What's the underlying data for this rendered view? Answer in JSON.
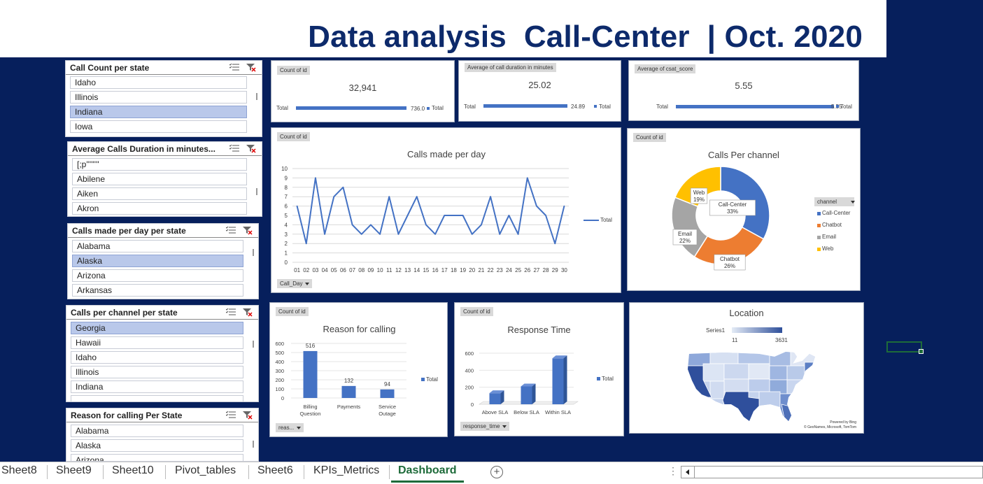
{
  "title": "Data analysis  Call-Center  | Oct. 2020",
  "slicers": [
    {
      "title": "Call Count per state",
      "items": [
        "Idaho",
        "Illinois",
        "Indiana",
        "Iowa"
      ],
      "selected": [
        2
      ]
    },
    {
      "title": "Average Calls Duration in minutes...",
      "items": [
        "[;p''''''''",
        "Abilene",
        "Aiken",
        "Akron"
      ],
      "selected": []
    },
    {
      "title": "Calls made per day per state",
      "items": [
        "Alabama",
        "Alaska",
        "Arizona",
        "Arkansas"
      ],
      "selected": [
        1
      ]
    },
    {
      "title": "Calls per channel per state",
      "items": [
        "Georgia",
        "Hawaii",
        "Idaho",
        "Illinois",
        "Indiana"
      ],
      "selected": [
        0
      ]
    },
    {
      "title": "Reason for calling Per State",
      "items": [
        "Alabama",
        "Alaska",
        "Arizona"
      ],
      "selected": []
    }
  ],
  "kpis": [
    {
      "tag": "Count of id",
      "value": "32,941",
      "row_label": "Total",
      "bar_label": "736.0",
      "legend": "Total"
    },
    {
      "tag": "Average of call duration in minutes",
      "value": "25.02",
      "row_label": "Total",
      "bar_label": "24.89",
      "legend": "Total"
    },
    {
      "tag": "Average of csat_score",
      "value": "5.55",
      "row_label": "Total",
      "bar_label": "5.55",
      "legend": "Total"
    }
  ],
  "calls_per_day": {
    "tag": "Count of id",
    "filter": "Call_Day",
    "legend": "Total",
    "chart_data": {
      "type": "line",
      "title": "Calls made per day",
      "x": [
        "01",
        "02",
        "03",
        "04",
        "05",
        "06",
        "07",
        "08",
        "09",
        "10",
        "11",
        "12",
        "13",
        "14",
        "15",
        "16",
        "17",
        "18",
        "19",
        "20",
        "21",
        "22",
        "23",
        "24",
        "25",
        "26",
        "27",
        "28",
        "29",
        "30"
      ],
      "series": [
        {
          "name": "Total",
          "values": [
            6,
            2,
            9,
            3,
            7,
            8,
            4,
            3,
            4,
            3,
            7,
            3,
            5,
            7,
            4,
            3,
            5,
            5,
            5,
            3,
            4,
            7,
            3,
            5,
            3,
            9,
            6,
            5,
            2,
            6
          ]
        }
      ],
      "ylim": [
        0,
        10
      ],
      "yticks": [
        "0",
        "1",
        "2",
        "3",
        "4",
        "5",
        "6",
        "7",
        "8",
        "9",
        "10"
      ],
      "grid": true,
      "color": "#4472c4"
    }
  },
  "calls_per_channel": {
    "tag": "Count of id",
    "filter": "channel",
    "chart_data": {
      "type": "pie",
      "title": "Calls Per channel",
      "labels": [
        "Call-Center",
        "Chatbot",
        "Email",
        "Web"
      ],
      "values": [
        33,
        26,
        22,
        19
      ],
      "value_labels": [
        "33%",
        "26%",
        "22%",
        "19%"
      ],
      "colors": [
        "#4472c4",
        "#ed7d31",
        "#a5a5a5",
        "#ffc000"
      ],
      "donut": true,
      "legend": "right"
    }
  },
  "reason": {
    "tag": "Count of id",
    "filter": "reas...",
    "legend": "Total",
    "chart_data": {
      "type": "bar",
      "title": "Reason for calling",
      "categories": [
        "Billing Question",
        "Payments",
        "Service Outage"
      ],
      "values": [
        516,
        132,
        94
      ],
      "data_labels": [
        "516",
        "132",
        "94"
      ],
      "ylim": [
        0,
        600
      ],
      "yticks": [
        "0",
        "100",
        "200",
        "300",
        "400",
        "500",
        "600"
      ],
      "color": "#4472c4"
    }
  },
  "response": {
    "tag": "Count of id",
    "filter": "response_time",
    "legend": "Total",
    "chart_data": {
      "type": "bar",
      "title": "Response Time",
      "categories": [
        "Above SLA",
        "Below SLA",
        "Within SLA"
      ],
      "values": [
        130,
        210,
        540
      ],
      "ylim": [
        0,
        600
      ],
      "yticks": [
        "0",
        "200",
        "400",
        "600"
      ],
      "style": "3d",
      "color": "#4472c4"
    }
  },
  "location": {
    "title": "Location",
    "legend_series": "Series1",
    "legend_min": "11",
    "legend_max": "3631",
    "credit1": "Powered by Bing",
    "credit2": "© GeoNames, Microsoft, TomTom"
  },
  "tabs": [
    "Sheet8",
    "Sheet9",
    "Sheet10",
    "Pivot_tables",
    "Sheet6",
    "KPIs_Metrics",
    "Dashboard"
  ],
  "active_tab": "Dashboard",
  "tabs_more": "⋮"
}
